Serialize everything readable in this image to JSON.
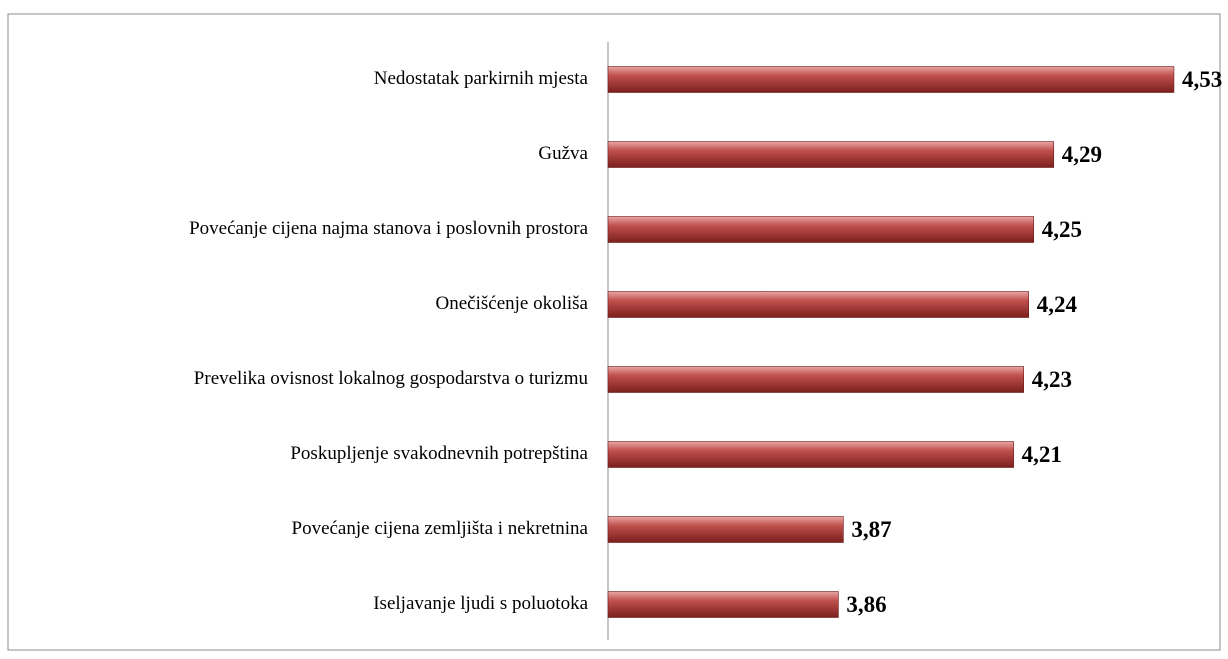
{
  "chart_data": {
    "type": "bar",
    "orientation": "horizontal",
    "categories": [
      "Nedostatak parkirnih mjesta",
      "Gužva",
      "Povećanje cijena najma stanova i poslovnih prostora",
      "Onečišćenje okoliša",
      "Prevelika ovisnost lokalnog gospodarstva o turizmu",
      "Poskupljenje svakodnevnih potrepština",
      "Povećanje cijena zemljišta i nekretnina",
      "Iseljavanje ljudi s poluotoka"
    ],
    "values": [
      4.53,
      4.29,
      4.25,
      4.24,
      4.23,
      4.21,
      3.87,
      3.86
    ],
    "value_labels": [
      "4,53",
      "4,29",
      "4,25",
      "4,24",
      "4,23",
      "4,21",
      "3,87",
      "3,86"
    ],
    "color": "#c0504d",
    "xlim": [
      3.4,
      4.6
    ]
  }
}
